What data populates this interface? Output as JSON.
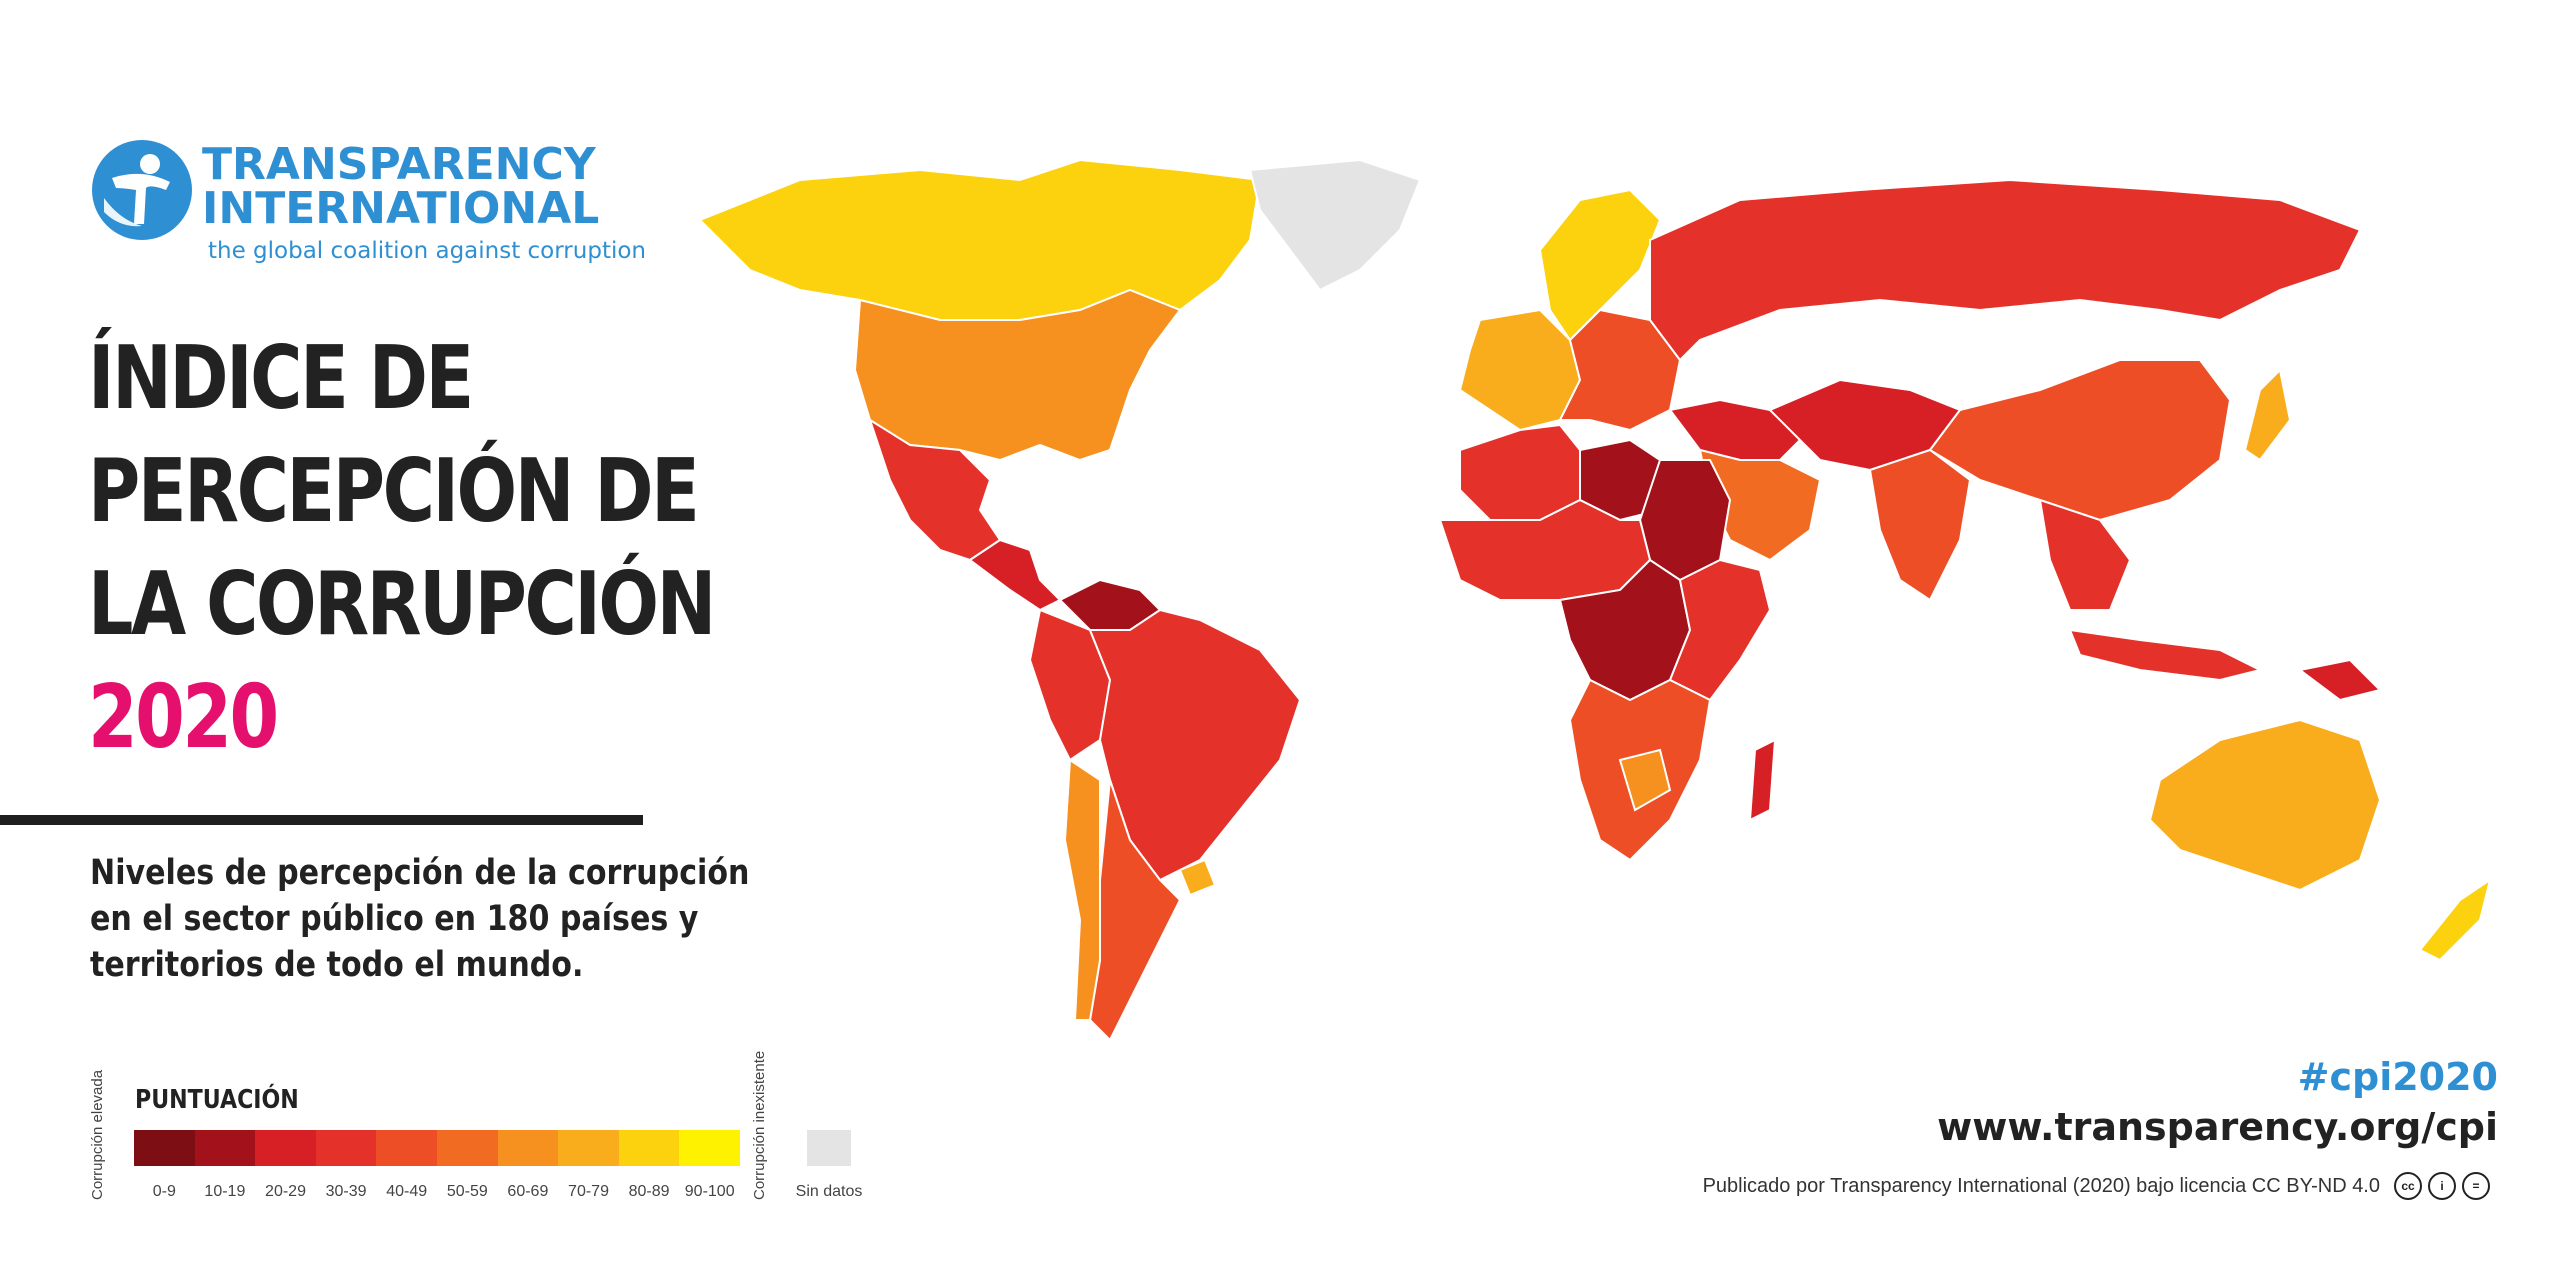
{
  "logo": {
    "line1": "TRANSPARENCY",
    "line2": "INTERNATIONAL",
    "tagline": "the global coalition against corruption"
  },
  "title": {
    "line1": "ÍNDICE DE",
    "line2": "PERCEPCIÓN DE",
    "line3": "LA CORRUPCIÓN",
    "year": "2020"
  },
  "subtitle": {
    "line1": "Niveles de percepción de la corrupción",
    "line2": "en el sector público en 180 países y",
    "line3": "territorios de todo el mundo."
  },
  "legend": {
    "title": "PUNTUACIÓN",
    "left_label": "Corrupción elevada",
    "right_label": "Corrupción inexistente",
    "no_data": "Sin datos",
    "ranges": [
      "0-9",
      "10-19",
      "20-29",
      "30-39",
      "40-49",
      "50-59",
      "60-69",
      "70-79",
      "80-89",
      "90-100"
    ],
    "colors": [
      "#7d0f14",
      "#a3121a",
      "#d71f26",
      "#e4322a",
      "#ed4e26",
      "#f26b22",
      "#f6901f",
      "#f9ad1c",
      "#fcd10d",
      "#fff200"
    ],
    "no_data_color": "#e4e4e4"
  },
  "footer": {
    "hashtag": "#cpi2020",
    "url": "www.transparency.org/cpi",
    "license": "Publicado por Transparency International (2020) bajo licencia CC BY-ND 4.0"
  },
  "colors": {
    "brand_blue": "#2f8fd3",
    "year_pink": "#e5106e"
  },
  "map_regions": [
    {
      "name": "canada",
      "score_band": "80-89"
    },
    {
      "name": "usa",
      "score_band": "60-69"
    },
    {
      "name": "greenland",
      "score_band": "no-data"
    },
    {
      "name": "mexico",
      "score_band": "30-39"
    },
    {
      "name": "central-america",
      "score_band": "20-29"
    },
    {
      "name": "venezuela",
      "score_band": "10-19"
    },
    {
      "name": "brazil",
      "score_band": "30-39"
    },
    {
      "name": "andes",
      "score_band": "30-39"
    },
    {
      "name": "argentina",
      "score_band": "40-49"
    },
    {
      "name": "chile",
      "score_band": "60-69"
    },
    {
      "name": "uruguay",
      "score_band": "70-79"
    },
    {
      "name": "scandinavia",
      "score_band": "80-89"
    },
    {
      "name": "western-europe",
      "score_band": "70-79"
    },
    {
      "name": "eastern-europe",
      "score_band": "40-49"
    },
    {
      "name": "russia",
      "score_band": "30-39"
    },
    {
      "name": "middle-east",
      "score_band": "20-29"
    },
    {
      "name": "saudi-arabia",
      "score_band": "50-59"
    },
    {
      "name": "north-africa",
      "score_band": "30-39"
    },
    {
      "name": "libya",
      "score_band": "10-19"
    },
    {
      "name": "sahel",
      "score_band": "30-39"
    },
    {
      "name": "sudan",
      "score_band": "10-19"
    },
    {
      "name": "central-africa",
      "score_band": "10-19"
    },
    {
      "name": "east-africa",
      "score_band": "30-39"
    },
    {
      "name": "southern-africa",
      "score_band": "40-49"
    },
    {
      "name": "botswana",
      "score_band": "60-69"
    },
    {
      "name": "madagascar",
      "score_band": "20-29"
    },
    {
      "name": "central-asia",
      "score_band": "20-29"
    },
    {
      "name": "india",
      "score_band": "40-49"
    },
    {
      "name": "china",
      "score_band": "40-49"
    },
    {
      "name": "japan",
      "score_band": "70-79"
    },
    {
      "name": "southeast-asia",
      "score_band": "30-39"
    },
    {
      "name": "indonesia",
      "score_band": "30-39"
    },
    {
      "name": "papua-new-guinea",
      "score_band": "20-29"
    },
    {
      "name": "australia",
      "score_band": "70-79"
    },
    {
      "name": "new-zealand",
      "score_band": "80-89"
    }
  ]
}
